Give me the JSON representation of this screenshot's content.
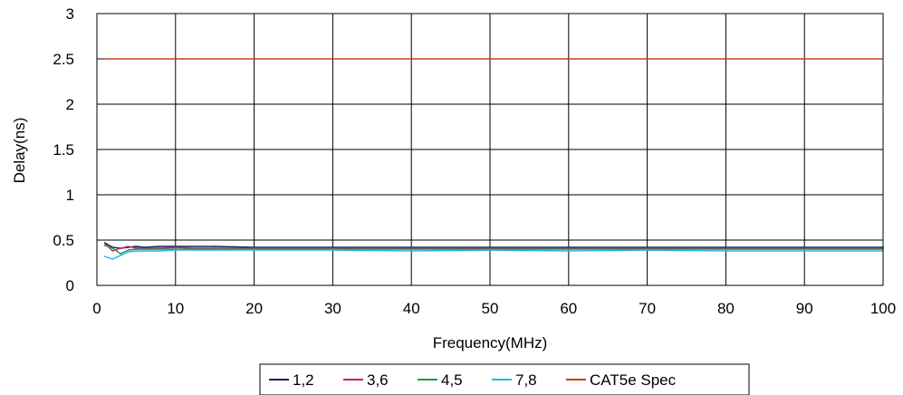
{
  "chart_data": {
    "type": "line",
    "xlabel": "Frequency(MHz)",
    "ylabel": "Delay(ns)",
    "xlim": [
      0,
      100
    ],
    "ylim": [
      0,
      3
    ],
    "x_ticks": [
      "0",
      "10",
      "20",
      "30",
      "40",
      "50",
      "60",
      "70",
      "80",
      "90",
      "100"
    ],
    "y_ticks": [
      "0",
      "0.5",
      "1",
      "1.5",
      "2",
      "2.5",
      "3"
    ],
    "grid": true,
    "legend_position": "bottom",
    "series": [
      {
        "name": "1,2",
        "color": "#1f1a6e",
        "x": [
          1,
          2,
          3,
          4,
          5,
          6,
          8,
          10,
          12,
          15,
          20,
          30,
          40,
          50,
          60,
          70,
          80,
          90,
          100
        ],
        "y": [
          0.47,
          0.42,
          0.41,
          0.42,
          0.43,
          0.42,
          0.43,
          0.43,
          0.43,
          0.43,
          0.42,
          0.42,
          0.42,
          0.42,
          0.42,
          0.42,
          0.42,
          0.42,
          0.42
        ]
      },
      {
        "name": "3,6",
        "color": "#d81b6a",
        "x": [
          1,
          2,
          3,
          4,
          5,
          6,
          8,
          10,
          12,
          15,
          20,
          30,
          40,
          50,
          60,
          70,
          80,
          90,
          100
        ],
        "y": [
          0.46,
          0.38,
          0.41,
          0.43,
          0.41,
          0.41,
          0.41,
          0.42,
          0.41,
          0.41,
          0.41,
          0.41,
          0.41,
          0.41,
          0.41,
          0.41,
          0.41,
          0.41,
          0.41
        ]
      },
      {
        "name": "4,5",
        "color": "#1a9a3a",
        "x": [
          1,
          2,
          3,
          4,
          5,
          6,
          8,
          10,
          12,
          15,
          20,
          30,
          40,
          50,
          60,
          70,
          80,
          90,
          100
        ],
        "y": [
          0.44,
          0.41,
          0.35,
          0.39,
          0.4,
          0.4,
          0.4,
          0.4,
          0.4,
          0.4,
          0.4,
          0.4,
          0.4,
          0.4,
          0.4,
          0.4,
          0.4,
          0.4,
          0.4
        ]
      },
      {
        "name": "7,8",
        "color": "#29b4e6",
        "x": [
          1,
          2,
          3,
          4,
          5,
          6,
          8,
          10,
          12,
          15,
          20,
          30,
          40,
          50,
          60,
          70,
          80,
          90,
          100
        ],
        "y": [
          0.32,
          0.29,
          0.33,
          0.37,
          0.38,
          0.38,
          0.38,
          0.39,
          0.39,
          0.39,
          0.39,
          0.39,
          0.38,
          0.39,
          0.38,
          0.39,
          0.38,
          0.38,
          0.38
        ]
      },
      {
        "name": "CAT5e Spec",
        "color": "#c8401e",
        "x": [
          1,
          100
        ],
        "y": [
          2.5,
          2.5
        ]
      }
    ]
  }
}
